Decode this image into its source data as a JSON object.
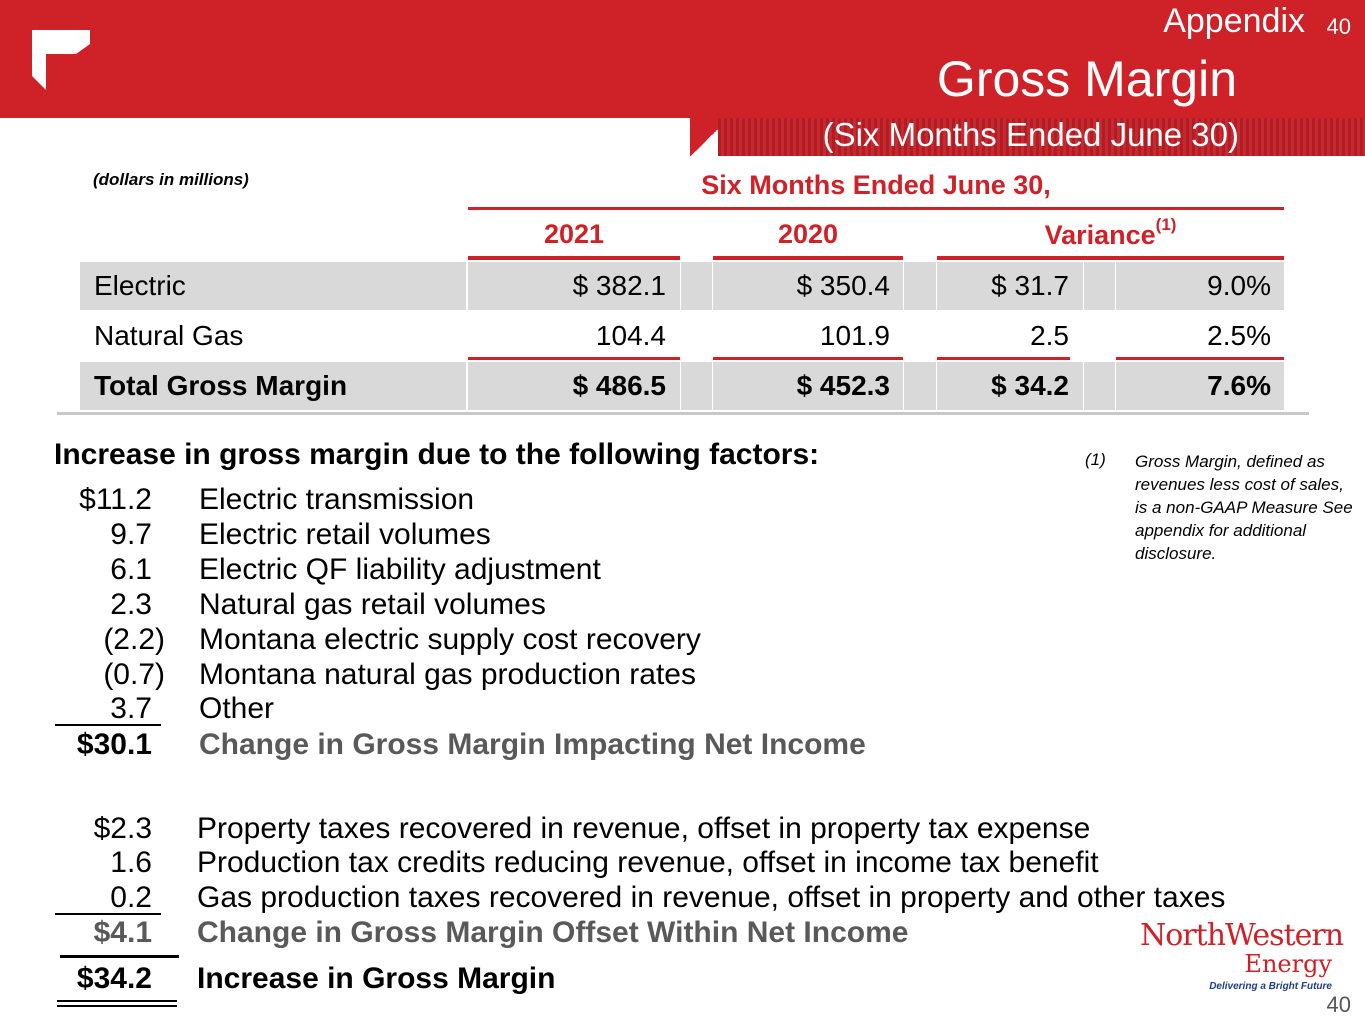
{
  "header": {
    "section": "Appendix",
    "page_number": "40",
    "title": "Gross Margin",
    "subtitle": "(Six Months Ended June 30)"
  },
  "table": {
    "units_note": "(dollars in millions)",
    "period_heading": "Six Months Ended June 30,",
    "columns": {
      "y2021": "2021",
      "y2020": "2020",
      "variance": "Variance",
      "variance_note": "(1)"
    },
    "rows": [
      {
        "label": "Electric",
        "v2021": "$ 382.1",
        "v2020": "$ 350.4",
        "var_amt": "$ 31.7",
        "var_pct": "9.0%"
      },
      {
        "label": "Natural Gas",
        "v2021": "104.4",
        "v2020": "101.9",
        "var_amt": "2.5",
        "var_pct": "2.5%"
      },
      {
        "label": "Total Gross Margin",
        "v2021": "$ 486.5",
        "v2020": "$ 452.3",
        "var_amt": "$ 34.2",
        "var_pct": "7.6%"
      }
    ]
  },
  "factors": {
    "heading": "Increase in gross margin due to the following factors:",
    "net_income_items": [
      {
        "amount": "$11.2",
        "label": "Electric transmission"
      },
      {
        "amount": "9.7",
        "label": "Electric retail volumes"
      },
      {
        "amount": "6.1",
        "label": "Electric QF liability adjustment"
      },
      {
        "amount": "2.3",
        "label": "Natural gas retail volumes"
      },
      {
        "amount": "(2.2)",
        "label": "Montana electric supply cost recovery"
      },
      {
        "amount": "(0.7)",
        "label": "Montana natural gas production rates"
      },
      {
        "amount": "3.7",
        "label": "Other"
      }
    ],
    "net_income_total": {
      "amount": "$30.1",
      "label": "Change in Gross Margin Impacting Net Income"
    },
    "offset_items": [
      {
        "amount": "$2.3",
        "label": "Property taxes recovered in revenue, offset in property tax expense"
      },
      {
        "amount": "1.6",
        "label": "Production tax credits reducing revenue, offset in income tax benefit"
      },
      {
        "amount": "0.2",
        "label": "Gas production taxes recovered in revenue, offset in property and other taxes"
      }
    ],
    "offset_total": {
      "amount": "$4.1",
      "label": "Change in Gross Margin Offset Within Net Income"
    },
    "grand_total": {
      "amount": "$34.2",
      "label": "Increase in Gross Margin"
    }
  },
  "footnote": {
    "mark": "(1)",
    "text": "Gross Margin, defined as revenues less cost of sales, is a non-GAAP Measure  See appendix for additional disclosure."
  },
  "logo": {
    "name": "NorthWestern",
    "sub": "Energy",
    "tagline": "Delivering a Bright Future"
  },
  "footer": {
    "page_number": "40"
  },
  "colors": {
    "brand_red": "#cf2128",
    "row_shade": "#d9d9d9",
    "emphasis_gray": "#595959"
  }
}
